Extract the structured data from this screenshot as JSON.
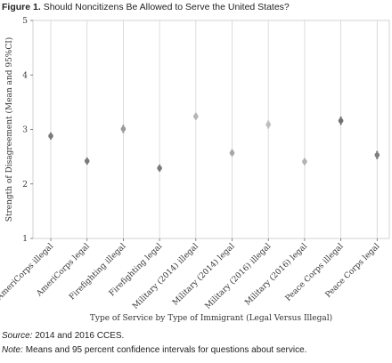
{
  "figure": {
    "label": "Figure 1.",
    "title": "Should Noncitizens Be Allowed to Serve the United States?"
  },
  "notes": {
    "source_label": "Source:",
    "source_text": "2014 and 2016 CCES.",
    "note_label": "Note:",
    "note_text": "Means and 95 percent confidence intervals for questions about service."
  },
  "chart_data": {
    "type": "scatter",
    "xlabel": "Type of Service by Type of Immigrant (Legal Versus Illegal)",
    "ylabel": "Strength of Disagreement (Mean and 95%CI)",
    "ylim": [
      1,
      5
    ],
    "yticks": [
      1,
      2,
      3,
      4,
      5
    ],
    "grid": "vertical",
    "categories": [
      "AmeriCorps illegal",
      "AmeriCorps legal",
      "Firefighting illegal",
      "Firefighting legal",
      "Military (2014) illegal",
      "Military (2014) legal",
      "Military (2016) illegal",
      "Military (2016) legal",
      "Peace Corps illegal",
      "Peace Corps legal"
    ],
    "means": [
      2.88,
      2.42,
      3.01,
      2.29,
      3.24,
      2.57,
      3.09,
      2.41,
      3.16,
      2.53
    ],
    "ci_low": [
      2.83,
      2.37,
      2.95,
      2.24,
      3.19,
      2.52,
      3.03,
      2.36,
      3.1,
      2.47
    ],
    "ci_high": [
      2.93,
      2.47,
      3.07,
      2.34,
      3.29,
      2.62,
      3.15,
      2.46,
      3.22,
      2.59
    ],
    "colors": [
      "#7a7a7a",
      "#7a7a7a",
      "#9a9a9a",
      "#7a7a7a",
      "#b5b5b5",
      "#a8a8a8",
      "#bdbdbd",
      "#b3b3b3",
      "#6f6f6f",
      "#7e7e7e"
    ]
  }
}
